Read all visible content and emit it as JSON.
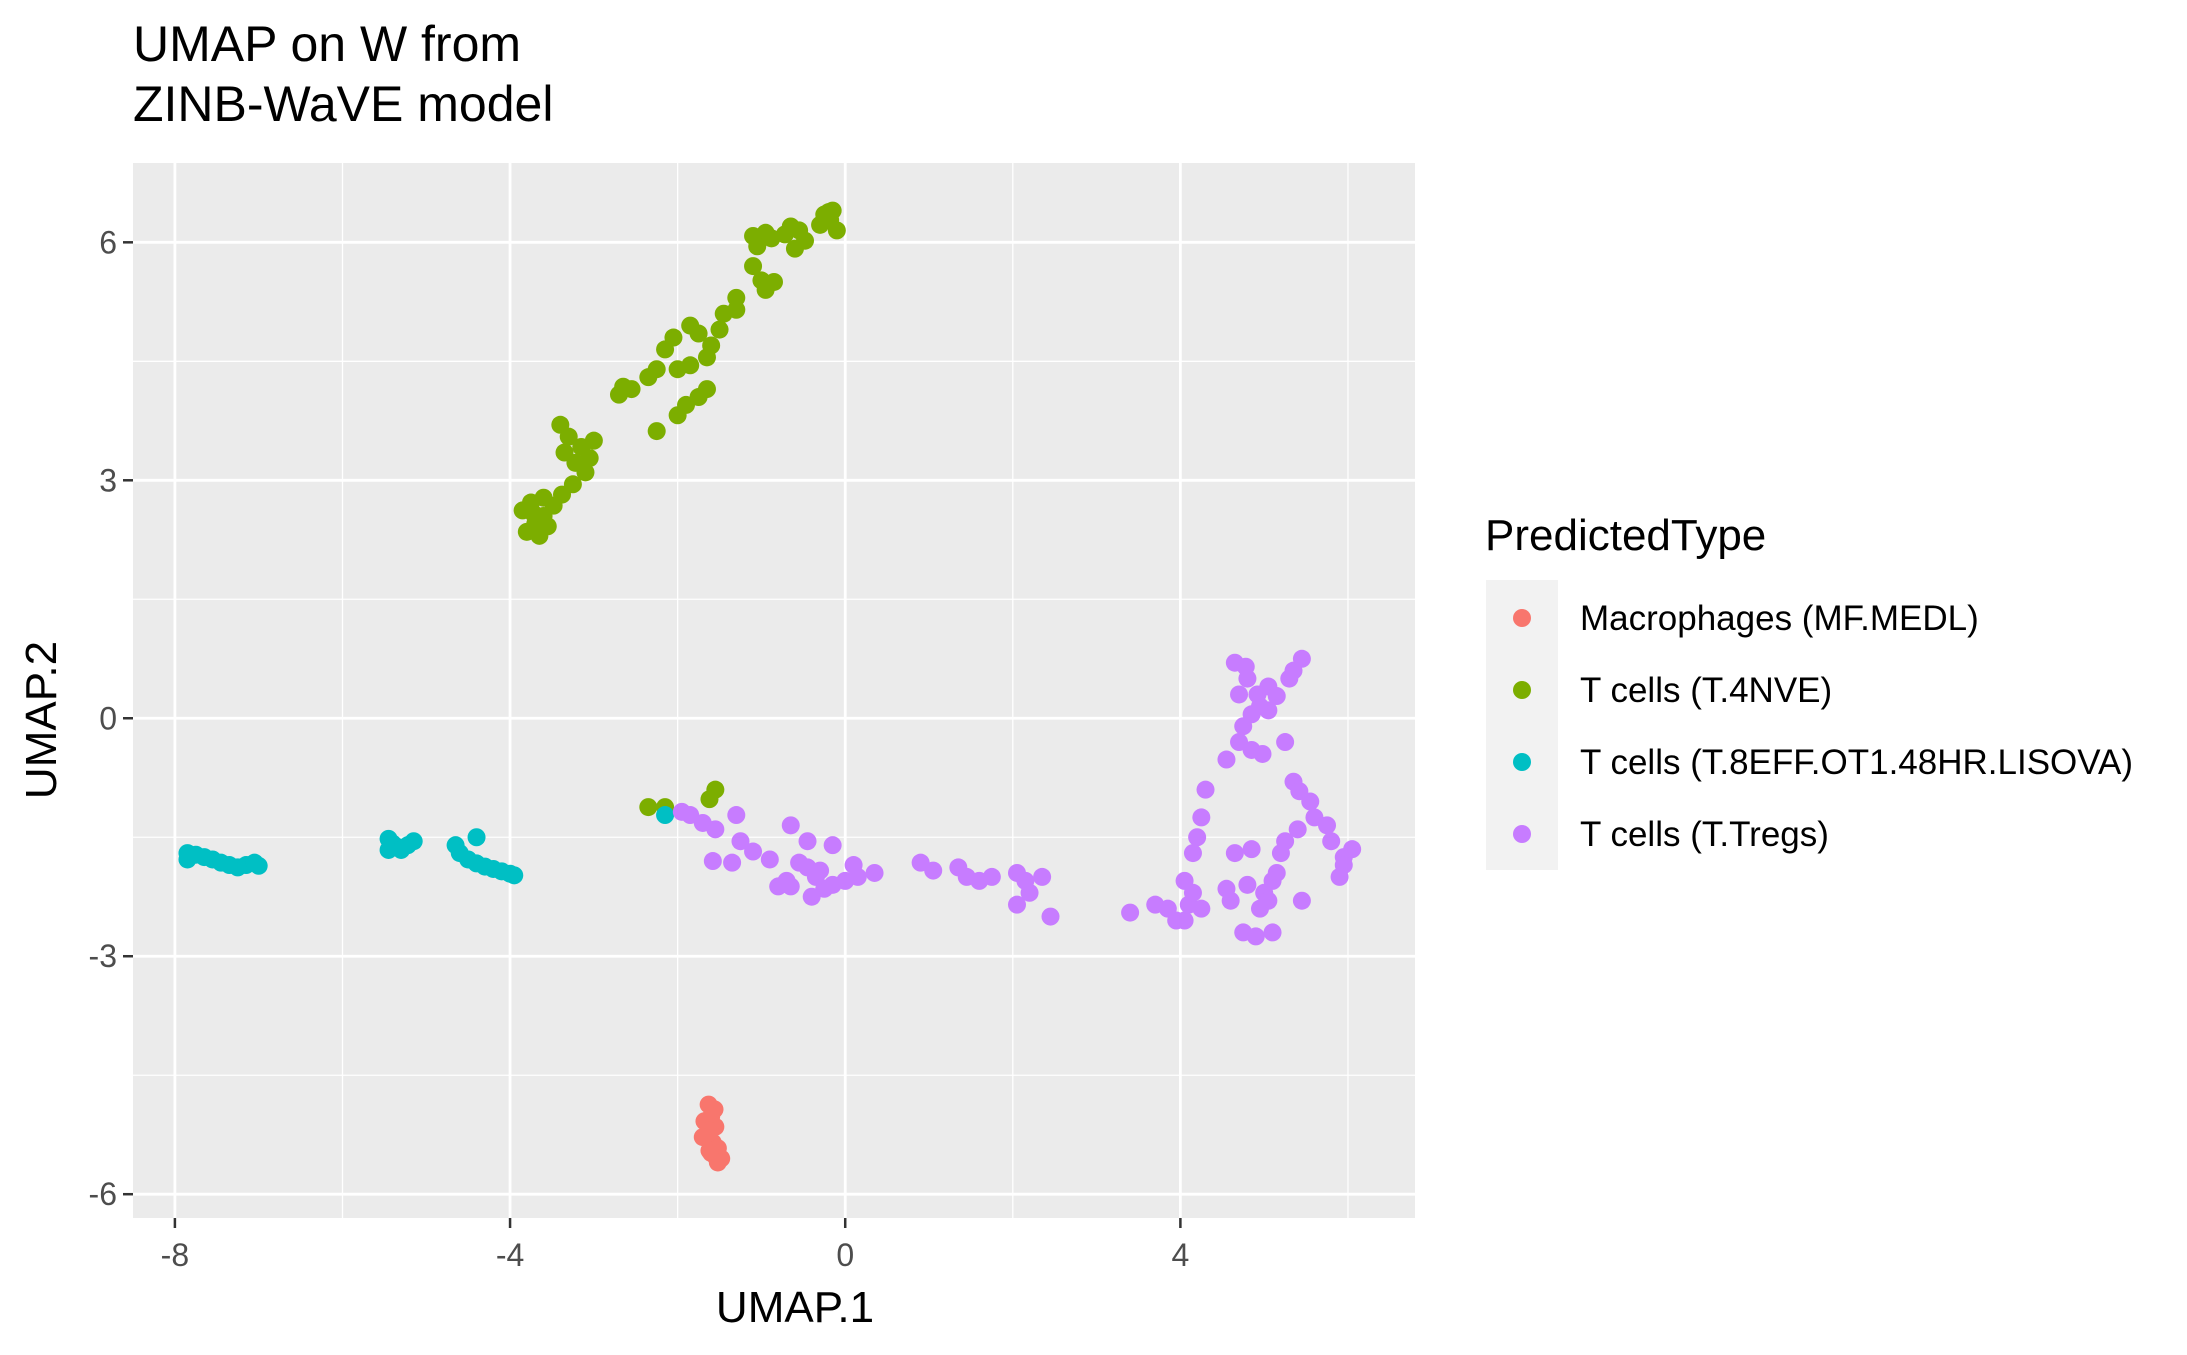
{
  "chart_data": {
    "type": "scatter",
    "title": "UMAP on W from\nZINB-WaVE model",
    "xlabel": "UMAP.1",
    "ylabel": "UMAP.2",
    "xlim": [
      -8.5,
      6.8
    ],
    "ylim": [
      -6.3,
      7.0
    ],
    "x_ticks": [
      -8,
      -4,
      0,
      4
    ],
    "y_ticks": [
      -6,
      -3,
      0,
      3,
      6
    ],
    "grid": true,
    "legend": {
      "title": "PredictedType",
      "placement": "right"
    },
    "series": [
      {
        "name": "Macrophages (MF.MEDL)",
        "color": "#F8766D",
        "points": [
          [
            -1.63,
            -4.87
          ],
          [
            -1.56,
            -4.93
          ],
          [
            -1.6,
            -5.02
          ],
          [
            -1.68,
            -5.08
          ],
          [
            -1.55,
            -5.15
          ],
          [
            -1.62,
            -5.2
          ],
          [
            -1.7,
            -5.28
          ],
          [
            -1.58,
            -5.35
          ],
          [
            -1.52,
            -5.42
          ],
          [
            -1.6,
            -5.48
          ],
          [
            -1.55,
            -5.52
          ],
          [
            -1.48,
            -5.55
          ],
          [
            -1.52,
            -5.6
          ],
          [
            -1.62,
            -5.45
          ]
        ]
      },
      {
        "name": "T cells (T.4NVE)",
        "color": "#7CAE00",
        "points": [
          [
            -0.15,
            6.4
          ],
          [
            -0.25,
            6.35
          ],
          [
            -0.18,
            6.28
          ],
          [
            -0.3,
            6.22
          ],
          [
            -0.1,
            6.15
          ],
          [
            -0.2,
            6.38
          ],
          [
            -0.55,
            6.15
          ],
          [
            -0.48,
            6.02
          ],
          [
            -0.6,
            5.92
          ],
          [
            -0.72,
            6.1
          ],
          [
            -0.88,
            6.05
          ],
          [
            -0.95,
            6.12
          ],
          [
            -0.65,
            6.2
          ],
          [
            -1.1,
            6.08
          ],
          [
            -1.05,
            5.95
          ],
          [
            -1.1,
            5.7
          ],
          [
            -1.0,
            5.52
          ],
          [
            -0.95,
            5.4
          ],
          [
            -0.85,
            5.5
          ],
          [
            -1.3,
            5.3
          ],
          [
            -1.45,
            5.1
          ],
          [
            -1.3,
            5.15
          ],
          [
            -1.5,
            4.9
          ],
          [
            -1.6,
            4.7
          ],
          [
            -1.65,
            4.55
          ],
          [
            -1.85,
            4.95
          ],
          [
            -1.75,
            4.85
          ],
          [
            -2.05,
            4.8
          ],
          [
            -2.15,
            4.65
          ],
          [
            -1.85,
            4.45
          ],
          [
            -2.0,
            4.4
          ],
          [
            -2.25,
            4.4
          ],
          [
            -2.35,
            4.3
          ],
          [
            -2.55,
            4.15
          ],
          [
            -2.7,
            4.08
          ],
          [
            -2.65,
            4.18
          ],
          [
            -1.65,
            4.15
          ],
          [
            -1.75,
            4.05
          ],
          [
            -1.9,
            3.95
          ],
          [
            -2.0,
            3.82
          ],
          [
            -2.25,
            3.62
          ],
          [
            -3.4,
            3.7
          ],
          [
            -3.3,
            3.55
          ],
          [
            -3.15,
            3.42
          ],
          [
            -3.0,
            3.5
          ],
          [
            -3.35,
            3.35
          ],
          [
            -3.22,
            3.22
          ],
          [
            -3.05,
            3.28
          ],
          [
            -3.1,
            3.1
          ],
          [
            -3.25,
            2.95
          ],
          [
            -3.38,
            2.82
          ],
          [
            -3.48,
            2.68
          ],
          [
            -3.6,
            2.55
          ],
          [
            -3.7,
            2.45
          ],
          [
            -3.85,
            2.62
          ],
          [
            -3.75,
            2.72
          ],
          [
            -3.8,
            2.35
          ],
          [
            -3.65,
            2.3
          ],
          [
            -3.55,
            2.42
          ],
          [
            -3.72,
            2.58
          ],
          [
            -3.6,
            2.78
          ],
          [
            -2.35,
            -1.12
          ],
          [
            -2.15,
            -1.12
          ],
          [
            -1.55,
            -0.9
          ],
          [
            -1.62,
            -1.02
          ]
        ]
      },
      {
        "name": "T cells (T.8EFF.OT1.48HR.LISOVA)",
        "color": "#00BFC4",
        "points": [
          [
            -7.85,
            -1.7
          ],
          [
            -7.85,
            -1.78
          ],
          [
            -7.75,
            -1.72
          ],
          [
            -7.65,
            -1.75
          ],
          [
            -7.55,
            -1.78
          ],
          [
            -7.45,
            -1.82
          ],
          [
            -7.35,
            -1.85
          ],
          [
            -7.25,
            -1.88
          ],
          [
            -7.15,
            -1.85
          ],
          [
            -7.05,
            -1.82
          ],
          [
            -7.0,
            -1.86
          ],
          [
            -5.45,
            -1.52
          ],
          [
            -5.4,
            -1.58
          ],
          [
            -5.35,
            -1.62
          ],
          [
            -5.3,
            -1.66
          ],
          [
            -5.45,
            -1.66
          ],
          [
            -5.22,
            -1.6
          ],
          [
            -5.15,
            -1.55
          ],
          [
            -4.65,
            -1.6
          ],
          [
            -4.6,
            -1.7
          ],
          [
            -4.5,
            -1.78
          ],
          [
            -4.4,
            -1.83
          ],
          [
            -4.3,
            -1.87
          ],
          [
            -4.2,
            -1.9
          ],
          [
            -4.1,
            -1.93
          ],
          [
            -4.0,
            -1.96
          ],
          [
            -3.95,
            -1.98
          ],
          [
            -4.4,
            -1.5
          ],
          [
            -2.15,
            -1.22
          ]
        ]
      },
      {
        "name": "T cells (T.Tregs)",
        "color": "#C77CFF",
        "points": [
          [
            -1.95,
            -1.18
          ],
          [
            -1.85,
            -1.22
          ],
          [
            -1.7,
            -1.32
          ],
          [
            -1.55,
            -1.4
          ],
          [
            -1.3,
            -1.22
          ],
          [
            -1.25,
            -1.55
          ],
          [
            -1.35,
            -1.82
          ],
          [
            -1.58,
            -1.8
          ],
          [
            -1.1,
            -1.68
          ],
          [
            -0.9,
            -1.78
          ],
          [
            -0.8,
            -2.12
          ],
          [
            -0.7,
            -2.05
          ],
          [
            -0.55,
            -1.82
          ],
          [
            -0.45,
            -1.88
          ],
          [
            -0.35,
            -2.0
          ],
          [
            -0.25,
            -2.15
          ],
          [
            -0.15,
            -2.1
          ],
          [
            0.0,
            -2.05
          ],
          [
            0.15,
            -2.0
          ],
          [
            0.35,
            -1.95
          ],
          [
            -0.65,
            -2.12
          ],
          [
            -0.4,
            -2.25
          ],
          [
            0.1,
            -1.85
          ],
          [
            -0.65,
            -1.35
          ],
          [
            -0.45,
            -1.55
          ],
          [
            -0.15,
            -1.6
          ],
          [
            -0.3,
            -1.92
          ],
          [
            0.9,
            -1.82
          ],
          [
            1.05,
            -1.92
          ],
          [
            1.35,
            -1.88
          ],
          [
            1.45,
            -2.0
          ],
          [
            1.6,
            -2.05
          ],
          [
            1.75,
            -2.0
          ],
          [
            2.05,
            -1.95
          ],
          [
            2.15,
            -2.05
          ],
          [
            2.35,
            -2.0
          ],
          [
            2.2,
            -2.2
          ],
          [
            2.05,
            -2.35
          ],
          [
            2.45,
            -2.5
          ],
          [
            3.4,
            -2.45
          ],
          [
            3.7,
            -2.35
          ],
          [
            3.85,
            -2.4
          ],
          [
            3.95,
            -2.55
          ],
          [
            4.05,
            -2.55
          ],
          [
            4.1,
            -2.35
          ],
          [
            4.15,
            -2.2
          ],
          [
            4.25,
            -2.4
          ],
          [
            4.05,
            -2.05
          ],
          [
            4.15,
            -1.7
          ],
          [
            4.2,
            -1.5
          ],
          [
            4.25,
            -1.25
          ],
          [
            4.3,
            -0.9
          ],
          [
            4.55,
            -0.52
          ],
          [
            4.7,
            -0.3
          ],
          [
            4.85,
            -0.4
          ],
          [
            4.98,
            -0.45
          ],
          [
            4.75,
            -0.1
          ],
          [
            4.7,
            0.3
          ],
          [
            4.8,
            0.5
          ],
          [
            4.92,
            0.3
          ],
          [
            5.05,
            0.4
          ],
          [
            5.15,
            0.28
          ],
          [
            5.3,
            0.5
          ],
          [
            5.45,
            0.75
          ],
          [
            5.35,
            0.6
          ],
          [
            4.65,
            0.7
          ],
          [
            4.78,
            0.65
          ],
          [
            4.85,
            0.05
          ],
          [
            4.95,
            0.15
          ],
          [
            5.05,
            0.1
          ],
          [
            5.35,
            -0.8
          ],
          [
            5.42,
            -0.92
          ],
          [
            5.55,
            -1.05
          ],
          [
            5.6,
            -1.25
          ],
          [
            5.75,
            -1.35
          ],
          [
            5.8,
            -1.55
          ],
          [
            5.4,
            -1.4
          ],
          [
            5.25,
            -1.55
          ],
          [
            5.2,
            -1.7
          ],
          [
            5.15,
            -1.95
          ],
          [
            5.1,
            -2.05
          ],
          [
            5.0,
            -2.2
          ],
          [
            4.95,
            -2.4
          ],
          [
            5.05,
            -2.3
          ],
          [
            5.45,
            -2.3
          ],
          [
            4.6,
            -2.3
          ],
          [
            4.75,
            -2.7
          ],
          [
            4.9,
            -2.75
          ],
          [
            5.1,
            -2.7
          ],
          [
            4.8,
            -2.1
          ],
          [
            4.65,
            -1.7
          ],
          [
            4.85,
            -1.65
          ],
          [
            5.95,
            -1.75
          ],
          [
            6.05,
            -1.65
          ],
          [
            5.95,
            -1.85
          ],
          [
            5.9,
            -2.0
          ],
          [
            5.25,
            -0.3
          ],
          [
            4.55,
            -2.15
          ]
        ]
      }
    ]
  }
}
